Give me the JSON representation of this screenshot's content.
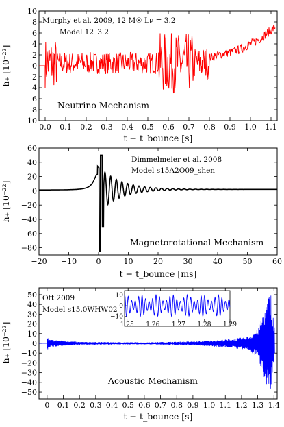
{
  "chart_data": [
    {
      "type": "line",
      "panel": "top",
      "annotation_lines": [
        "Murphy et al. 2009, 12 M☉ Lν = 3.2",
        "Model 12_3.2"
      ],
      "mechanism": "Neutrino Mechanism",
      "xlabel": "t − t_bounce [s]",
      "ylabel": "h₊ [10⁻²²]",
      "xlim": [
        -0.03,
        1.13
      ],
      "ylim": [
        -10,
        10
      ],
      "xticks": [
        0.0,
        0.1,
        0.2,
        0.3,
        0.4,
        0.5,
        0.6,
        0.7,
        0.8,
        0.9,
        1.0,
        1.1
      ],
      "yticks": [
        -10,
        -8,
        -6,
        -4,
        -2,
        0,
        2,
        4,
        6,
        8,
        10
      ],
      "color": "#ff0000",
      "series_description_points": {
        "x": [
          0.0,
          0.02,
          0.04,
          0.1,
          0.3,
          0.5,
          0.6,
          0.65,
          0.7,
          0.8,
          0.85,
          0.9,
          0.95,
          1.0,
          1.05,
          1.1,
          1.12
        ],
        "y": [
          0,
          5,
          -3,
          1.5,
          0.5,
          0.5,
          4,
          -8,
          2,
          1.5,
          2,
          2.5,
          3,
          4,
          5,
          6.5,
          7
        ]
      }
    },
    {
      "type": "line",
      "panel": "middle",
      "annotation_lines": [
        "Dimmelmeier et al. 2008",
        "Model s15A2O09_shen"
      ],
      "mechanism": "Magnetorotational Mechanism",
      "xlabel": "t − t_bounce [ms]",
      "ylabel": "h₊ [10⁻²²]",
      "xlim": [
        -20,
        60
      ],
      "ylim": [
        -90,
        60
      ],
      "xticks": [
        -20,
        -10,
        0,
        10,
        20,
        30,
        40,
        50,
        60
      ],
      "yticks": [
        -80,
        -60,
        -40,
        -20,
        0,
        20,
        40,
        60
      ],
      "color": "#000000",
      "series_description_points": {
        "x": [
          -20,
          -10,
          -5,
          -1,
          0,
          0.5,
          1,
          1.5,
          3,
          5,
          10,
          20,
          30,
          60
        ],
        "y": [
          0,
          1,
          4,
          25,
          35,
          -85,
          50,
          -50,
          20,
          15,
          8,
          3,
          1,
          0
        ]
      }
    },
    {
      "type": "line",
      "panel": "bottom",
      "annotation_lines": [
        "Ott 2009",
        "Model s15.0WHW02"
      ],
      "mechanism": "Acoustic Mechanism",
      "xlabel": "t − t_bounce [s]",
      "ylabel": "h₊ [10⁻²²]",
      "xlim": [
        -0.05,
        1.42
      ],
      "ylim": [
        -57,
        57
      ],
      "xticks": [
        0,
        0.1,
        0.2,
        0.3,
        0.4,
        0.5,
        0.6,
        0.7,
        0.8,
        0.9,
        1.0,
        1.1,
        1.2,
        1.3,
        1.4
      ],
      "yticks": [
        -50,
        -40,
        -30,
        -20,
        -10,
        0,
        10,
        20,
        30,
        40,
        50
      ],
      "color": "#0000ff",
      "series_description_points": {
        "x": [
          0,
          0.01,
          0.2,
          0.6,
          0.9,
          1.1,
          1.2,
          1.25,
          1.3,
          1.35,
          1.38,
          1.4
        ],
        "y_envelope": [
          8,
          4,
          1.5,
          1,
          2,
          4,
          6,
          8,
          15,
          40,
          55,
          20
        ]
      },
      "inset": {
        "xlim": [
          1.249,
          1.29
        ],
        "ylim": [
          -14,
          14
        ],
        "xticks": [
          1.25,
          1.26,
          1.27,
          1.28,
          1.29
        ],
        "yticks": [
          -10,
          0,
          10
        ],
        "amplitude": 10
      }
    }
  ]
}
